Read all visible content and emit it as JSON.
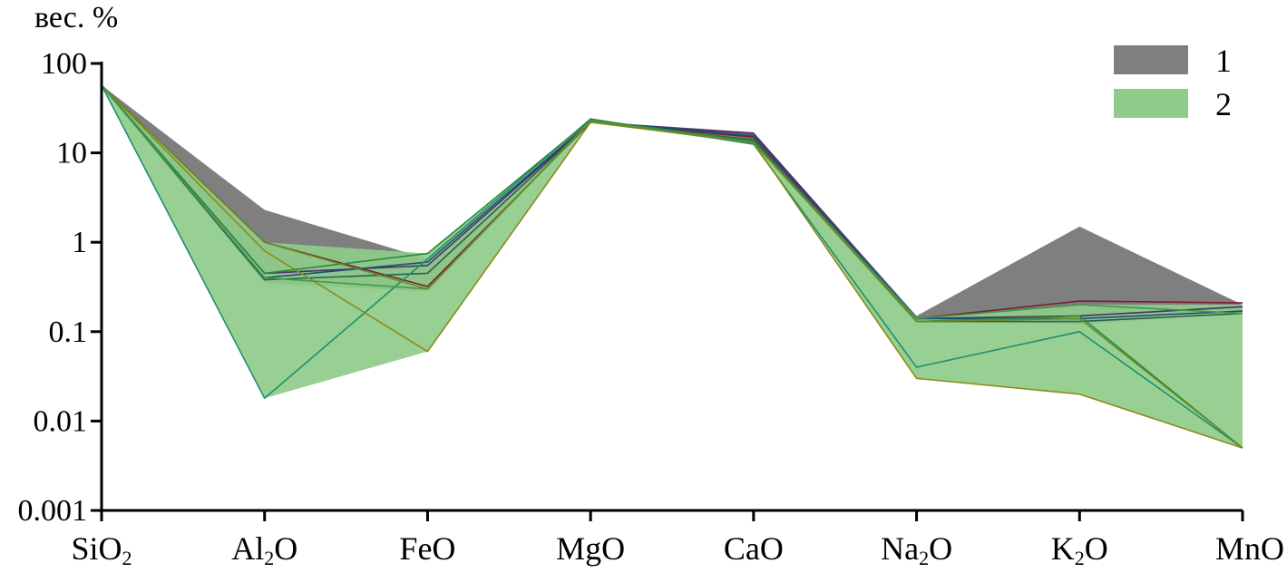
{
  "chart_data": {
    "type": "area",
    "title": "",
    "ylabel": "вес. %",
    "xlabel": "",
    "y_scale": "log",
    "ylim": [
      0.001,
      100
    ],
    "yticks": [
      "100",
      "10",
      "1",
      "0.1",
      "0.01",
      "0.001"
    ],
    "categories": [
      {
        "base": "SiO",
        "sub": "2"
      },
      {
        "base": "Al",
        "sub": "2",
        "tail": "O"
      },
      {
        "base": "FeO"
      },
      {
        "base": "MgO"
      },
      {
        "base": "CaO"
      },
      {
        "base": "Na",
        "sub": "2",
        "tail": "O"
      },
      {
        "base": "K",
        "sub": "2",
        "tail": "O"
      },
      {
        "base": "MnO"
      }
    ],
    "legend": {
      "position": "top-right",
      "entries": [
        {
          "label": "1",
          "color": "#7f7f7f"
        },
        {
          "label": "2",
          "color": "#8fcc8a"
        }
      ]
    },
    "series": [
      {
        "name": "1",
        "fill": "#7f7f7f",
        "upper": [
          57,
          2.3,
          0.65,
          22.5,
          17,
          0.15,
          1.5,
          0.2
        ],
        "lower": [
          57,
          0.35,
          0.28,
          22,
          13,
          0.13,
          0.12,
          0.16
        ],
        "lines": [
          {
            "color": "#7a1f2b",
            "values": [
              57,
              1.0,
              0.32,
              22,
              15,
              0.14,
              0.22,
              0.21
            ]
          },
          {
            "color": "#4b2d6b",
            "values": [
              57,
              0.45,
              0.55,
              22,
              16.5,
              0.14,
              0.15,
              0.19
            ]
          },
          {
            "color": "#1f4e79",
            "values": [
              57,
              0.4,
              0.6,
              22.5,
              15.5,
              0.14,
              0.14,
              0.17
            ]
          },
          {
            "color": "#2e5e4e",
            "values": [
              57,
              0.38,
              0.45,
              22,
              14,
              0.13,
              0.13,
              0.16
            ]
          }
        ]
      },
      {
        "name": "2",
        "fill": "#8fcc8a",
        "upper": [
          57,
          1.0,
          0.75,
          24,
          13.5,
          0.14,
          0.2,
          0.2
        ],
        "lower": [
          57,
          0.018,
          0.06,
          22,
          12.5,
          0.03,
          0.02,
          0.005
        ],
        "lines": [
          {
            "color": "#1f8f6f",
            "values": [
              57,
              0.018,
              0.65,
              24,
              12.5,
              0.04,
              0.1,
              0.005
            ]
          },
          {
            "color": "#8a8a1a",
            "values": [
              57,
              0.8,
              0.06,
              22,
              13,
              0.03,
              0.02,
              0.005
            ]
          },
          {
            "color": "#2a8a3a",
            "values": [
              57,
              0.45,
              0.75,
              23.5,
              13.5,
              0.13,
              0.15,
              0.005
            ]
          },
          {
            "color": "#3f9a4a",
            "values": [
              57,
              0.4,
              0.3,
              23,
              13,
              0.14,
              0.2,
              0.16
            ]
          },
          {
            "color": "#6a8a2a",
            "values": [
              57,
              1.0,
              0.3,
              22.5,
              13,
              0.13,
              0.14,
              0.005
            ]
          }
        ]
      }
    ]
  }
}
